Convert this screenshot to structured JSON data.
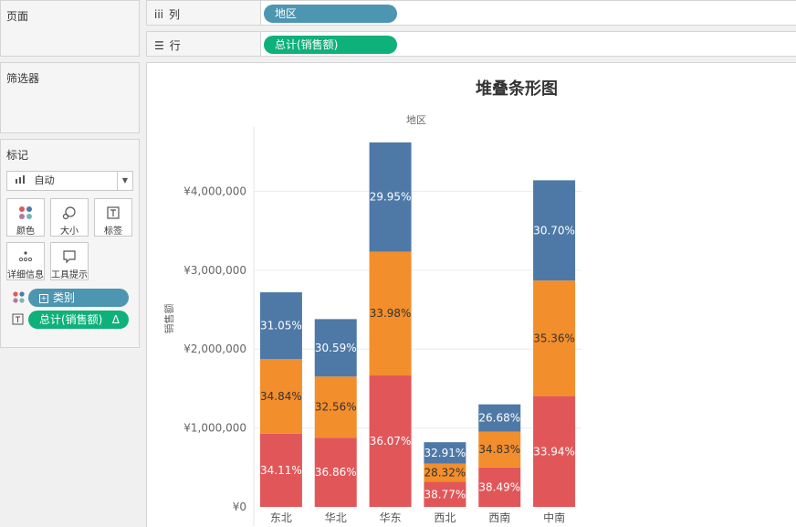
{
  "panels": {
    "pages_title": "页面",
    "filters_title": "筛选器",
    "marks_title": "标记",
    "mark_type": "自动",
    "mark_buttons": [
      "颜色",
      "大小",
      "标签",
      "详细信息",
      "工具提示"
    ],
    "mark_fields": {
      "color_field": "类别",
      "label_field": "总计(销售额)",
      "label_field_suffix": "Δ"
    }
  },
  "shelves": {
    "columns_label": "列",
    "columns_pill": "地区",
    "rows_label": "行",
    "rows_pill": "总计(销售额)"
  },
  "colors": {
    "bottom": "#e15759",
    "middle": "#f28e2b",
    "top": "#4e79a7"
  },
  "chart_data": {
    "type": "bar",
    "stacked": true,
    "title": "堆叠条形图",
    "xlabel": "地区",
    "ylabel": "销售额",
    "ylim": [
      0,
      4700000
    ],
    "yticks": [
      0,
      1000000,
      2000000,
      3000000,
      4000000
    ],
    "ytick_labels": [
      "¥0",
      "¥1,000,000",
      "¥2,000,000",
      "¥3,000,000",
      "¥4,000,000"
    ],
    "categories": [
      "东北",
      "华北",
      "华东",
      "西北",
      "西南",
      "中南"
    ],
    "totals": [
      2720000,
      2380000,
      4620000,
      820000,
      1300000,
      4140000
    ],
    "series": [
      {
        "values": [
          927800,
          877300,
          1666400,
          317900,
          500400,
          1405100
        ],
        "labels": [
          "34.11%",
          "36.86%",
          "36.07%",
          "38.77%",
          "38.49%",
          "33.94%"
        ],
        "label_color": "#ffffff"
      },
      {
        "values": [
          947600,
          774900,
          1569900,
          232200,
          452800,
          1463900
        ],
        "labels": [
          "34.84%",
          "32.56%",
          "33.98%",
          "28.32%",
          "34.83%",
          "35.36%"
        ],
        "label_color": "#333333"
      },
      {
        "values": [
          844600,
          728000,
          1383700,
          269900,
          346800,
          1271000
        ],
        "labels": [
          "31.05%",
          "30.59%",
          "29.95%",
          "32.91%",
          "26.68%",
          "30.70%"
        ],
        "label_color": "#ffffff"
      }
    ],
    "grid": true
  }
}
